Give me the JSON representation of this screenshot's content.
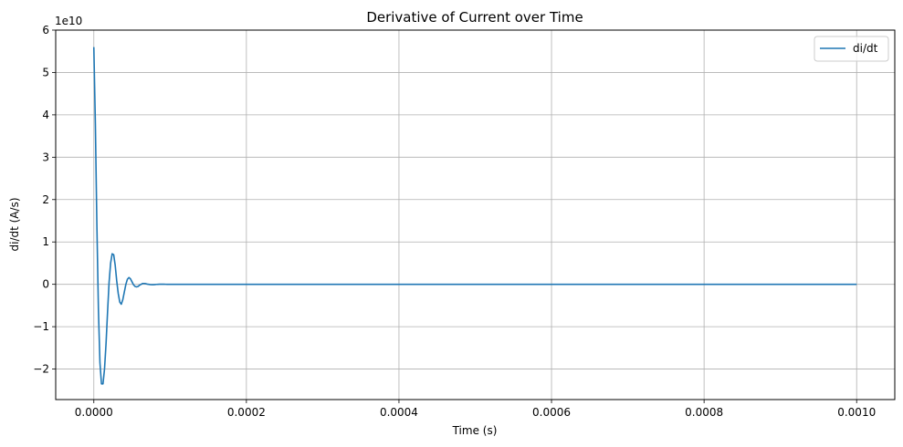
{
  "chart_data": {
    "type": "line",
    "title": "Derivative of Current over Time",
    "xlabel": "Time (s)",
    "ylabel": "di/dt (A/s)",
    "y_offset_label": "1e10",
    "y_scale": 10000000000,
    "xlim": [
      -5e-05,
      0.00105
    ],
    "ylim": [
      -2.72,
      6.0
    ],
    "x_ticks": [
      0.0,
      0.0002,
      0.0004,
      0.0006,
      0.0008,
      0.001
    ],
    "x_tick_labels": [
      "0.0000",
      "0.0002",
      "0.0004",
      "0.0006",
      "0.0008",
      "0.0010"
    ],
    "y_ticks": [
      -2,
      -1,
      0,
      1,
      2,
      3,
      4,
      5,
      6
    ],
    "y_tick_labels": [
      "−2",
      "−1",
      "0",
      "1",
      "2",
      "3",
      "4",
      "5",
      "6"
    ],
    "grid": true,
    "legend_position": "top-right",
    "series": [
      {
        "name": "di/dt",
        "color": "#1f77b4",
        "x": [
          0.0,
          2e-06,
          4e-06,
          6e-06,
          8e-06,
          1e-05,
          1.2e-05,
          1.4e-05,
          1.6e-05,
          1.8e-05,
          2e-05,
          2.2e-05,
          2.4e-05,
          2.6e-05,
          2.8e-05,
          3e-05,
          3.2e-05,
          3.4e-05,
          3.6e-05,
          3.8e-05,
          4e-05,
          4.2e-05,
          4.4e-05,
          4.6e-05,
          4.8e-05,
          5e-05,
          5.2e-05,
          5.4e-05,
          5.6e-05,
          5.8e-05,
          6e-05,
          6.2e-05,
          6.4e-05,
          6.6e-05,
          6.8e-05,
          7e-05,
          7.2e-05,
          7.4e-05,
          7.6e-05,
          7.8e-05,
          8e-05,
          8.2e-05,
          8.4e-05,
          8.6e-05,
          8.8e-05,
          9e-05,
          9.2e-05,
          9.4e-05,
          9.6e-05,
          9.8e-05,
          0.0001,
          0.000105,
          0.00011,
          0.000115,
          0.00012,
          0.00013,
          0.00014,
          0.00015,
          0.0002,
          0.0003,
          0.0004,
          0.0005,
          0.0006,
          0.0007,
          0.0008,
          0.0009,
          0.001
        ],
        "values": [
          5.6,
          3.8,
          1.4,
          -0.6,
          -1.85,
          -2.35,
          -2.35,
          -2.0,
          -1.4,
          -0.65,
          0.05,
          0.5,
          0.72,
          0.7,
          0.45,
          0.08,
          -0.22,
          -0.42,
          -0.47,
          -0.36,
          -0.18,
          0.0,
          0.12,
          0.16,
          0.13,
          0.06,
          -0.01,
          -0.05,
          -0.06,
          -0.05,
          -0.02,
          0.0,
          0.02,
          0.02,
          0.015,
          0.005,
          0.0,
          -0.005,
          -0.008,
          -0.008,
          -0.005,
          -0.002,
          0.0,
          0.002,
          0.003,
          0.003,
          0.002,
          0.001,
          0.0,
          -0.001,
          -0.001,
          -0.0005,
          0.0,
          0.0003,
          0.0002,
          0.0,
          0.0,
          0.0,
          0.0,
          0.0,
          0.0,
          0.0,
          0.0,
          0.0,
          0.0,
          0.0,
          0.0
        ]
      }
    ]
  }
}
